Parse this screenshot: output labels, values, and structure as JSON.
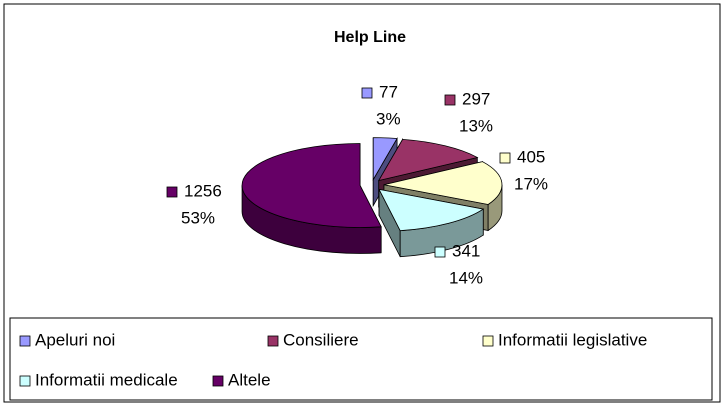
{
  "chart_data": {
    "type": "pie",
    "title": "Help Line",
    "categories": [
      "Apeluri noi",
      "Consiliere",
      "Informatii legislative",
      "Informatii medicale",
      "Altele"
    ],
    "values": [
      77,
      297,
      405,
      341,
      1256
    ],
    "percent_labels": [
      "3%",
      "13%",
      "17%",
      "14%",
      "53%"
    ],
    "colors": [
      "#9999ff",
      "#993366",
      "#ffffcc",
      "#ccffff",
      "#660066"
    ],
    "legend": "bottom"
  }
}
